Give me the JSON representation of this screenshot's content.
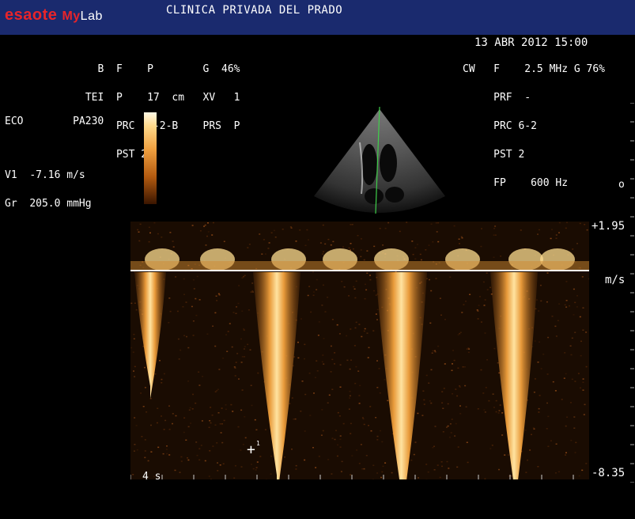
{
  "header": {
    "brand_e": "e",
    "brand_saote": "saote",
    "brand_my": "My",
    "brand_lab": "Lab",
    "clinic": "CLINICA PRIVADA DEL PRADO",
    "datetime": "13 ABR 2012 15:00"
  },
  "left_params": [
    "   B  F    P        G  46%",
    " TEI  P    17  cm   XV   1",
    "      PRC  7-2-B    PRS  P",
    "      PST 2"
  ],
  "right_params": [
    "CW   F    2.5 MHz G 76%",
    "     PRF  -",
    "     PRC 6-2",
    "     PST 2",
    "     FP    600 Hz"
  ],
  "mode": {
    "label": "ECO",
    "probe": "PA230"
  },
  "measurements": {
    "v1_label": "V1",
    "v1_value": "-7.16 m/s",
    "gr_label": "Gr",
    "gr_value": "205.0 mmHg"
  },
  "scale": {
    "top": "+1.95",
    "unit": "m/s",
    "bottom": "-8.35",
    "dot": "o"
  },
  "time_label": "4 s",
  "caliper_mark": "1",
  "colors": {
    "topbar": "#1a2a6e",
    "brand_red": "#e8242a",
    "doppler_core": "#ffe3a0",
    "doppler_mid": "#e89a3a",
    "sector_line": "#3fd04a"
  }
}
